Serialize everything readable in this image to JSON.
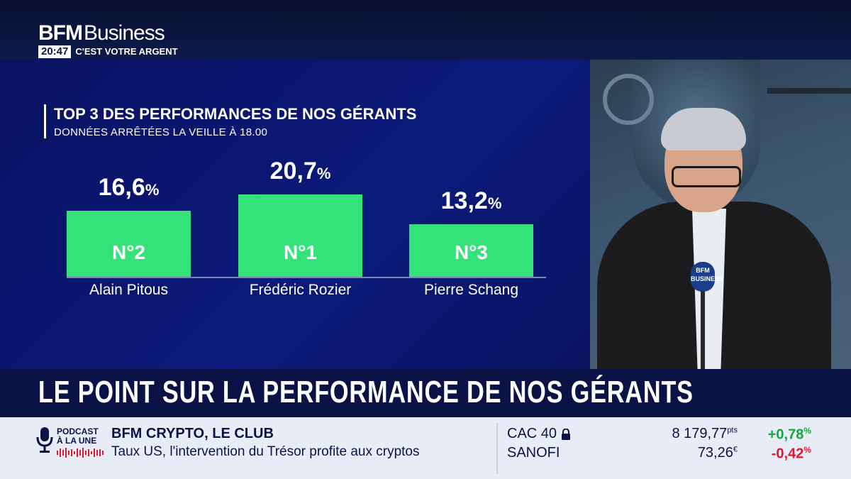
{
  "channel": {
    "brand_bold": "BFM",
    "brand_light": "Business",
    "clock": "20:47",
    "show": "C'EST VOTRE ARGENT"
  },
  "chart": {
    "title": "TOP 3 DES PERFORMANCES DE NOS GÉRANTS",
    "subtitle": "DONNÉES ARRÊTÉES LA VEILLE À 18.00",
    "bar_color": "#35e27a",
    "bars": [
      {
        "value_text": "16,6",
        "unit": "%",
        "value": 16.6,
        "rank": "N°2",
        "name": "Alain Pitous"
      },
      {
        "value_text": "20,7",
        "unit": "%",
        "value": 20.7,
        "rank": "N°1",
        "name": "Frédéric Rozier"
      },
      {
        "value_text": "13,2",
        "unit": "%",
        "value": 13.2,
        "rank": "N°3",
        "name": "Pierre Schang"
      }
    ]
  },
  "mic_flag": "BFM BUSINESS",
  "headline": "LE POINT SUR LA PERFORMANCE DE NOS GÉRANTS",
  "ticker": {
    "podcast_line1": "PODCAST",
    "podcast_line2": "À LA UNE",
    "news_title": "BFM CRYPTO, LE CLUB",
    "news_sub": "Taux US, l'intervention du Trésor profite aux cryptos",
    "markets": [
      {
        "name": "CAC 40",
        "value": "8 179,77",
        "unit": "pts",
        "change": "+0,78",
        "change_unit": "%",
        "change_color": "#14a83c",
        "locked": true
      },
      {
        "name": "SANOFI",
        "value": "73,26",
        "unit": "€",
        "change": "-0,42",
        "change_unit": "%",
        "change_color": "#e0182d",
        "locked": false
      }
    ]
  }
}
